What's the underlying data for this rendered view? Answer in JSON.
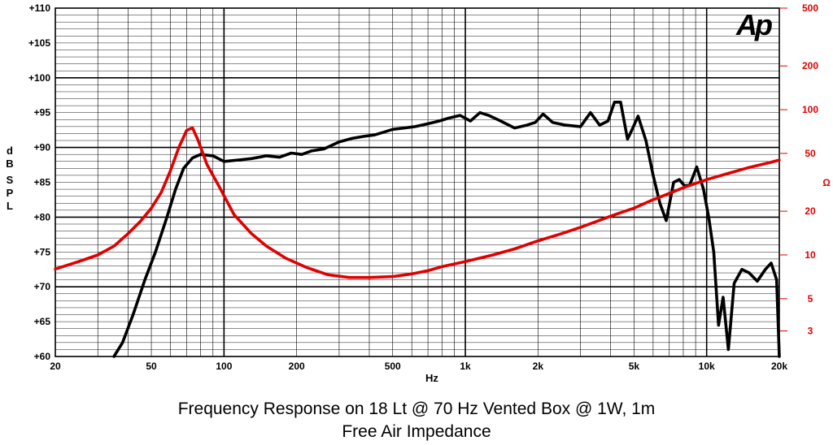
{
  "chart_data": {
    "type": "line",
    "title": "Frequency Response on 18 Lt @ 70 Hz Vented Box @ 1W, 1m",
    "subtitle": "Free Air Impedance",
    "logo": "Ap",
    "xlabel": "Hz",
    "ylabel": "dB SPL",
    "y2label": "Ω",
    "xscale": "log",
    "xlim": [
      20,
      20000
    ],
    "ylim": [
      60,
      110
    ],
    "y2scale": "log",
    "y2lim": [
      2,
      500
    ],
    "grid": true,
    "x_ticks": [
      "20",
      "50",
      "100",
      "200",
      "500",
      "1k",
      "2k",
      "5k",
      "10k",
      "20k"
    ],
    "y_ticks": [
      "+60",
      "+65",
      "+70",
      "+75",
      "+80",
      "+85",
      "+90",
      "+95",
      "+100",
      "+105",
      "+110"
    ],
    "y2_ticks": [
      "3",
      "5",
      "10",
      "20",
      "50",
      "100",
      "200",
      "500"
    ],
    "series": [
      {
        "name": "",
        "axis": "left",
        "color": "#000000",
        "x": [
          35,
          38,
          42,
          47,
          52,
          58,
          63,
          68,
          74,
          80,
          90,
          100,
          115,
          130,
          150,
          170,
          190,
          210,
          230,
          260,
          300,
          340,
          380,
          420,
          460,
          500,
          560,
          620,
          700,
          780,
          850,
          950,
          1050,
          1150,
          1250,
          1400,
          1600,
          1800,
          1950,
          2100,
          2300,
          2600,
          3000,
          3300,
          3600,
          3900,
          4150,
          4400,
          4700,
          4900,
          5200,
          5600,
          6000,
          6400,
          6800,
          7300,
          7700,
          8100,
          8500,
          9100,
          9700,
          10200,
          10700,
          11200,
          11700,
          12300,
          13000,
          14000,
          15000,
          16200,
          17500,
          18500,
          19500,
          20000
        ],
        "y": [
          60,
          62,
          66,
          71,
          75,
          80,
          84,
          87,
          88.5,
          89,
          88.8,
          88,
          88.2,
          88.4,
          88.8,
          88.6,
          89.2,
          89.0,
          89.5,
          89.8,
          90.8,
          91.3,
          91.6,
          91.8,
          92.2,
          92.6,
          92.8,
          93.0,
          93.4,
          93.8,
          94.2,
          94.6,
          93.8,
          95.0,
          94.6,
          93.8,
          92.8,
          93.2,
          93.6,
          94.8,
          93.6,
          93.2,
          93.0,
          95.0,
          93.2,
          93.8,
          96.5,
          96.5,
          91.2,
          92.5,
          94.5,
          91.0,
          86.0,
          82.0,
          79.5,
          85.0,
          85.4,
          84.5,
          84.6,
          87.2,
          84.0,
          80.0,
          75.0,
          64.5,
          68.5,
          61.0,
          70.5,
          72.5,
          72.0,
          70.8,
          72.5,
          73.4,
          71.0,
          60.0
        ]
      },
      {
        "name": "",
        "axis": "right",
        "color": "#e00000",
        "x": [
          20,
          25,
          30,
          35,
          40,
          45,
          50,
          55,
          60,
          65,
          70,
          74,
          78,
          85,
          95,
          110,
          130,
          150,
          180,
          220,
          270,
          330,
          400,
          500,
          600,
          700,
          800,
          1000,
          1300,
          1600,
          2000,
          2500,
          3000,
          3500,
          4000,
          5000,
          6000,
          7000,
          8000,
          10000,
          12000,
          15000,
          18000,
          20000
        ],
        "y": [
          8,
          9,
          10,
          11.5,
          14,
          17,
          21,
          27,
          38,
          55,
          72,
          75,
          62,
          42,
          30,
          19,
          14,
          11.5,
          9.5,
          8.2,
          7.3,
          7,
          7,
          7.1,
          7.4,
          7.8,
          8.3,
          9,
          10,
          11,
          12.5,
          14,
          15.5,
          17,
          18.5,
          21,
          24,
          26.5,
          29,
          33,
          36,
          40,
          43,
          45
        ]
      }
    ]
  }
}
